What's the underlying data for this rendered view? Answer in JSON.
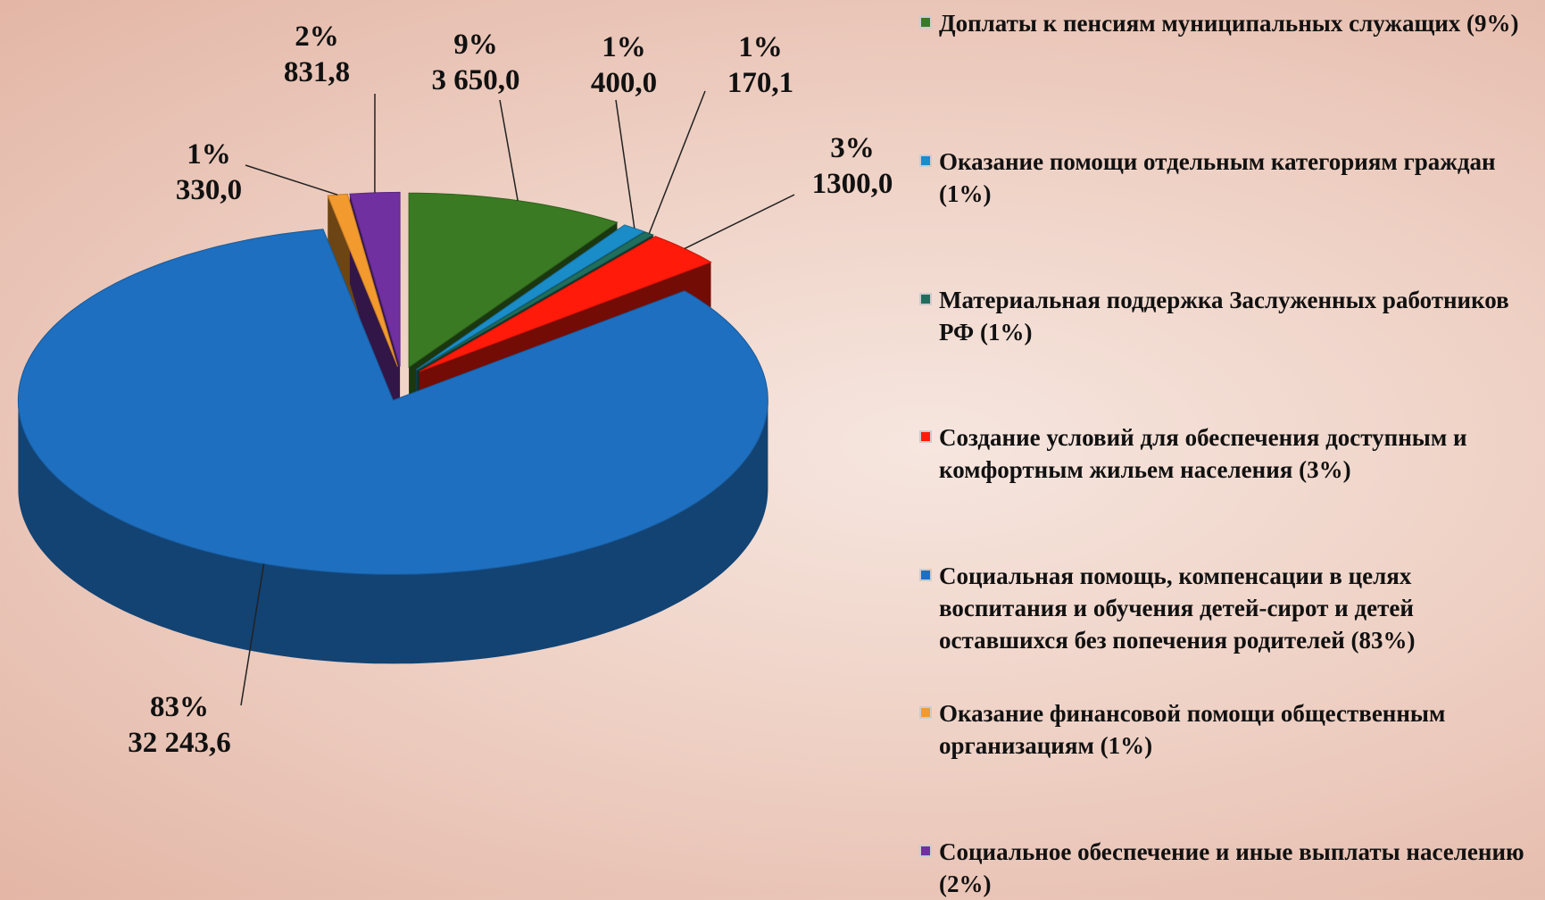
{
  "chart_data": {
    "type": "pie",
    "categories": [
      "Доплаты к пенсиям муниципальных служащих (9%)",
      "Оказание помощи отдельным категориям граждан (1%)",
      "Материальная поддержка Заслуженных работников РФ (1%)",
      "Создание условий для обеспечения доступным и комфортным жильем населения (3%)",
      "Социальная помощь, компенсации в целях воспитания и обучения детей-сирот и детей оставшихся без попечения родителей (83%)",
      "Оказание финансовой помощи общественным организациям (1%)",
      "Социальное обеспечение и иные выплаты населению (2%)"
    ],
    "values": [
      3650.0,
      400.0,
      170.1,
      1300.0,
      32243.6,
      330.0,
      831.8
    ],
    "value_labels": [
      "3 650,0",
      "400,0",
      "170,1",
      "1300,0",
      "32 243,6",
      "330,0",
      "831,8"
    ],
    "percents": [
      9,
      1,
      1,
      3,
      83,
      1,
      2
    ],
    "percent_labels": [
      "9%",
      "1%",
      "1%",
      "3%",
      "83%",
      "1%",
      "2%"
    ],
    "colors": [
      "#3a7a23",
      "#1a8cc8",
      "#1f6e5e",
      "#ff1a0a",
      "#1e6fbf",
      "#f39a2e",
      "#7030a0"
    ]
  }
}
